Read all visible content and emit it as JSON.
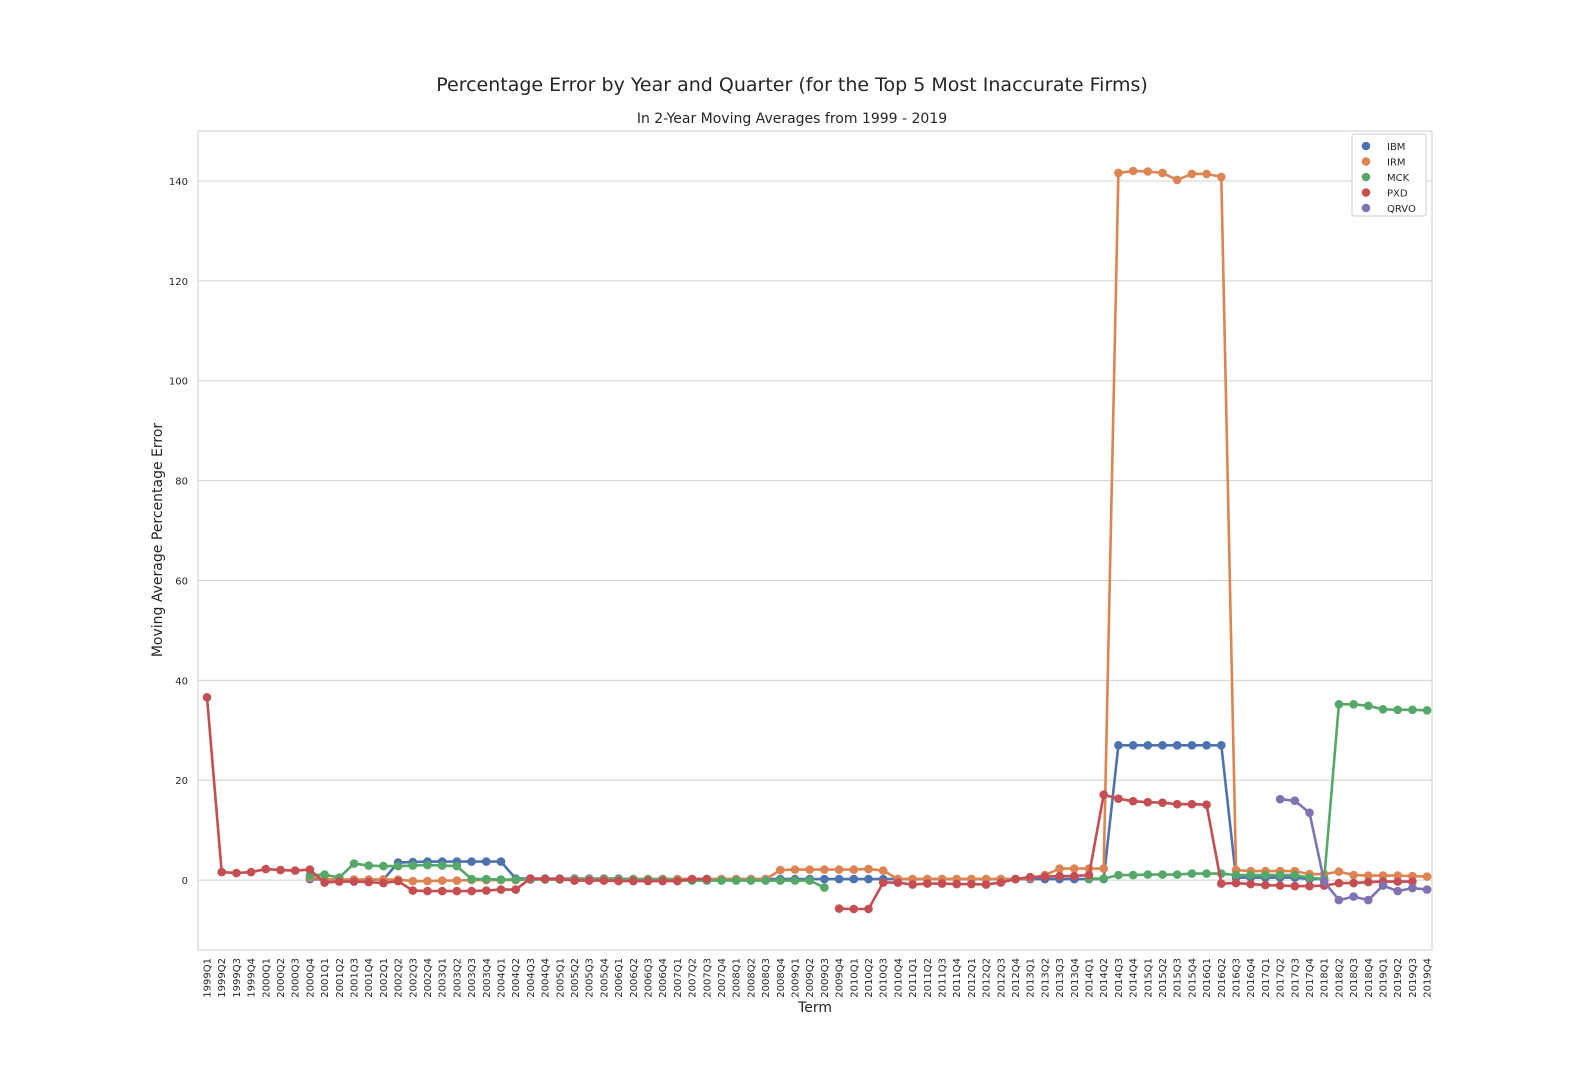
{
  "chart_data": {
    "type": "line",
    "title": "Percentage Error by Year and Quarter (for the Top 5 Most Inaccurate Firms)",
    "subtitle": "In 2-Year Moving Averages from 1999 - 2019",
    "xlabel": "Term",
    "ylabel": "Moving Average Percentage Error",
    "ylim": [
      -14,
      150
    ],
    "yticks": [
      0,
      20,
      40,
      60,
      80,
      100,
      120,
      140
    ],
    "grid": "horizontal",
    "legend_position": "top-right",
    "markers": true,
    "categories": [
      "1999Q1",
      "1999Q2",
      "1999Q3",
      "1999Q4",
      "2000Q1",
      "2000Q2",
      "2000Q3",
      "2000Q4",
      "2001Q1",
      "2001Q2",
      "2001Q3",
      "2001Q4",
      "2002Q1",
      "2002Q2",
      "2002Q3",
      "2002Q4",
      "2003Q1",
      "2003Q2",
      "2003Q3",
      "2003Q4",
      "2004Q1",
      "2004Q2",
      "2004Q3",
      "2004Q4",
      "2005Q1",
      "2005Q2",
      "2005Q3",
      "2005Q4",
      "2006Q1",
      "2006Q2",
      "2006Q3",
      "2006Q4",
      "2007Q1",
      "2007Q2",
      "2007Q3",
      "2007Q4",
      "2008Q1",
      "2008Q2",
      "2008Q3",
      "2008Q4",
      "2009Q1",
      "2009Q2",
      "2009Q3",
      "2009Q4",
      "2010Q1",
      "2010Q2",
      "2010Q3",
      "2010Q4",
      "2011Q1",
      "2011Q2",
      "2011Q3",
      "2011Q4",
      "2012Q1",
      "2012Q2",
      "2012Q3",
      "2012Q4",
      "2013Q1",
      "2013Q2",
      "2013Q3",
      "2013Q4",
      "2014Q1",
      "2014Q2",
      "2014Q3",
      "2014Q4",
      "2015Q1",
      "2015Q2",
      "2015Q3",
      "2015Q4",
      "2016Q1",
      "2016Q2",
      "2016Q3",
      "2016Q4",
      "2017Q1",
      "2017Q2",
      "2017Q3",
      "2017Q4",
      "2018Q1",
      "2018Q2",
      "2018Q3",
      "2018Q4",
      "2019Q1",
      "2019Q2",
      "2019Q3",
      "2019Q4"
    ],
    "series": [
      {
        "name": "IBM",
        "color": "#4c72b0",
        "values": [
          null,
          null,
          null,
          null,
          null,
          null,
          null,
          0.2,
          0.1,
          0.1,
          0.1,
          0.1,
          0.1,
          3.5,
          3.6,
          3.7,
          3.7,
          3.7,
          3.7,
          3.7,
          3.7,
          0.3,
          0.3,
          0.3,
          0.3,
          0.3,
          0.3,
          0.3,
          0.3,
          0.2,
          0.2,
          0.2,
          0.2,
          0.2,
          0.2,
          0.2,
          0.2,
          0.2,
          0.2,
          0.2,
          0.2,
          0.2,
          0.2,
          0.2,
          0.2,
          0.2,
          0.2,
          0.2,
          0.2,
          0.2,
          0.2,
          0.2,
          0.2,
          0.2,
          0.2,
          0.2,
          0.2,
          0.2,
          0.2,
          0.2,
          0.2,
          0.2,
          27.0,
          27.0,
          27.0,
          27.0,
          27.0,
          27.0,
          27.0,
          27.0,
          0.5,
          0.5,
          0.5,
          0.5,
          0.5,
          0.2,
          0.2,
          null,
          null,
          null,
          null,
          null,
          null,
          null
        ]
      },
      {
        "name": "IRM",
        "color": "#dd8452",
        "values": [
          null,
          null,
          null,
          null,
          null,
          null,
          null,
          0.5,
          0.2,
          0.1,
          0.1,
          0.1,
          0.1,
          0.1,
          -0.2,
          -0.2,
          -0.1,
          -0.1,
          0,
          0,
          0,
          0,
          0.2,
          0.2,
          0.2,
          0.2,
          0.2,
          0.2,
          0.2,
          0.2,
          0.2,
          0.2,
          0.2,
          0.2,
          0.2,
          0.2,
          0.2,
          0.2,
          0.2,
          2.0,
          2.1,
          2.1,
          2.1,
          2.1,
          2.1,
          2.2,
          1.9,
          0.2,
          0.2,
          0.2,
          0.2,
          0.2,
          0.2,
          0.2,
          0.2,
          0.2,
          0.4,
          1.0,
          2.3,
          2.3,
          2.3,
          2.3,
          141.6,
          142.0,
          141.9,
          141.6,
          140.2,
          141.4,
          141.4,
          140.8,
          2.0,
          1.8,
          1.8,
          1.8,
          1.8,
          1.2,
          1.2,
          1.7,
          1.0,
          0.9,
          0.9,
          0.9,
          0.8,
          0.7
        ]
      },
      {
        "name": "MCK",
        "color": "#55a868",
        "values": [
          null,
          null,
          null,
          null,
          null,
          null,
          null,
          0.9,
          1.1,
          0.5,
          3.3,
          2.9,
          2.8,
          2.8,
          2.9,
          3.0,
          2.9,
          2.8,
          0.2,
          0.2,
          0.1,
          0.1,
          0.1,
          0.1,
          0.1,
          0.1,
          0.1,
          0.1,
          0.1,
          0.1,
          0.1,
          0.1,
          -0.1,
          -0.1,
          -0.1,
          -0.1,
          -0.1,
          -0.1,
          -0.1,
          -0.1,
          -0.1,
          -0.1,
          -1.5,
          null,
          null,
          null,
          null,
          null,
          null,
          null,
          null,
          null,
          null,
          null,
          null,
          null,
          null,
          null,
          null,
          null,
          0.3,
          0.3,
          1.0,
          1.0,
          1.1,
          1.1,
          1.1,
          1.3,
          1.3,
          1.3,
          1.0,
          1.0,
          1.0,
          1.0,
          1.0,
          0.5,
          0.2,
          35.2,
          35.2,
          34.9,
          34.2,
          34.1,
          34.1,
          34.0
        ]
      },
      {
        "name": "PXD",
        "color": "#c44e52",
        "values": [
          36.6,
          1.6,
          1.4,
          1.6,
          2.2,
          2.0,
          1.9,
          2.1,
          -0.5,
          -0.3,
          -0.3,
          -0.4,
          -0.6,
          -0.2,
          -2.1,
          -2.2,
          -2.2,
          -2.2,
          -2.2,
          -2.1,
          -1.9,
          -1.9,
          0.3,
          0.2,
          0.2,
          -0.1,
          -0.1,
          -0.1,
          -0.2,
          -0.2,
          -0.2,
          -0.2,
          -0.2,
          0.2,
          0.2,
          null,
          null,
          null,
          null,
          null,
          null,
          null,
          null,
          -5.7,
          -5.8,
          -5.8,
          -0.5,
          -0.5,
          -0.9,
          -0.7,
          -0.7,
          -0.8,
          -0.8,
          -0.9,
          -0.5,
          0.2,
          0.6,
          0.7,
          0.8,
          0.8,
          1.0,
          17.1,
          16.3,
          15.8,
          15.6,
          15.5,
          15.2,
          15.2,
          15.1,
          -0.7,
          -0.6,
          -0.8,
          -1.0,
          -1.1,
          -1.2,
          -1.2,
          -1.1,
          -0.6,
          -0.6,
          -0.4,
          -0.3,
          -0.3,
          -0.3,
          null
        ]
      },
      {
        "name": "QRVO",
        "color": "#8172b2",
        "values": [
          null,
          null,
          null,
          null,
          null,
          null,
          null,
          null,
          null,
          null,
          null,
          null,
          null,
          null,
          null,
          null,
          null,
          null,
          null,
          null,
          null,
          null,
          null,
          null,
          null,
          null,
          null,
          null,
          null,
          null,
          null,
          null,
          null,
          null,
          null,
          null,
          null,
          null,
          null,
          null,
          null,
          null,
          null,
          null,
          null,
          null,
          null,
          null,
          null,
          null,
          null,
          null,
          null,
          null,
          null,
          null,
          null,
          null,
          null,
          null,
          null,
          null,
          null,
          null,
          null,
          null,
          null,
          null,
          null,
          null,
          null,
          null,
          null,
          16.2,
          15.9,
          13.5,
          -0.3,
          -4.0,
          -3.3,
          -4.0,
          -1.1,
          -2.2,
          -1.6,
          -1.9
        ]
      }
    ]
  }
}
